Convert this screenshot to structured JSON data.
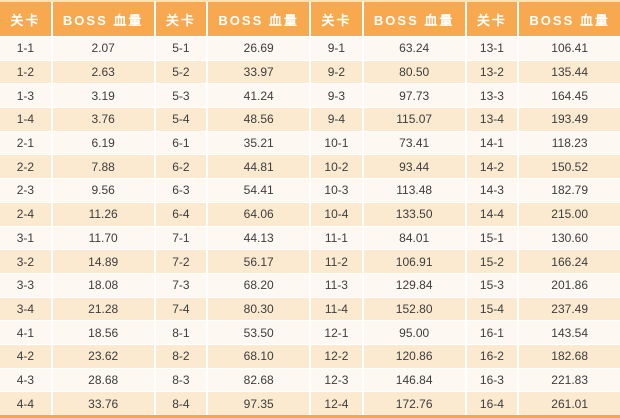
{
  "chart_data": {
    "type": "table",
    "title": "",
    "columns": [
      "关卡",
      "BOSS 血量",
      "关卡",
      "BOSS 血量",
      "关卡",
      "BOSS 血量",
      "关卡",
      "BOSS 血量"
    ],
    "rows": [
      [
        "1-1",
        "2.07",
        "5-1",
        "26.69",
        "9-1",
        "63.24",
        "13-1",
        "106.41"
      ],
      [
        "1-2",
        "2.63",
        "5-2",
        "33.97",
        "9-2",
        "80.50",
        "13-2",
        "135.44"
      ],
      [
        "1-3",
        "3.19",
        "5-3",
        "41.24",
        "9-3",
        "97.73",
        "13-3",
        "164.45"
      ],
      [
        "1-4",
        "3.76",
        "5-4",
        "48.56",
        "9-4",
        "115.07",
        "13-4",
        "193.49"
      ],
      [
        "2-1",
        "6.19",
        "6-1",
        "35.21",
        "10-1",
        "73.41",
        "14-1",
        "118.23"
      ],
      [
        "2-2",
        "7.88",
        "6-2",
        "44.81",
        "10-2",
        "93.44",
        "14-2",
        "150.52"
      ],
      [
        "2-3",
        "9.56",
        "6-3",
        "54.41",
        "10-3",
        "113.48",
        "14-3",
        "182.79"
      ],
      [
        "2-4",
        "11.26",
        "6-4",
        "64.06",
        "10-4",
        "133.50",
        "14-4",
        "215.00"
      ],
      [
        "3-1",
        "11.70",
        "7-1",
        "44.13",
        "11-1",
        "84.01",
        "15-1",
        "130.60"
      ],
      [
        "3-2",
        "14.89",
        "7-2",
        "56.17",
        "11-2",
        "106.91",
        "15-2",
        "166.24"
      ],
      [
        "3-3",
        "18.08",
        "7-3",
        "68.20",
        "11-3",
        "129.84",
        "15-3",
        "201.86"
      ],
      [
        "3-4",
        "21.28",
        "7-4",
        "80.30",
        "11-4",
        "152.80",
        "15-4",
        "237.49"
      ],
      [
        "4-1",
        "18.56",
        "8-1",
        "53.50",
        "12-1",
        "95.00",
        "16-1",
        "143.54"
      ],
      [
        "4-2",
        "23.62",
        "8-2",
        "68.10",
        "12-2",
        "120.86",
        "16-2",
        "182.68"
      ],
      [
        "4-3",
        "28.68",
        "8-3",
        "82.68",
        "12-3",
        "146.84",
        "16-3",
        "221.83"
      ],
      [
        "4-4",
        "33.76",
        "8-4",
        "97.35",
        "12-4",
        "172.76",
        "16-4",
        "261.01"
      ]
    ],
    "layout": {
      "header_background": "#f8a94f",
      "header_text_color": "#ffffff",
      "row_stripe_light": "#fdf8f1",
      "row_stripe_cream": "#fbead0",
      "bottom_border_color": "#f7a64c",
      "grid_lines": "white"
    }
  }
}
